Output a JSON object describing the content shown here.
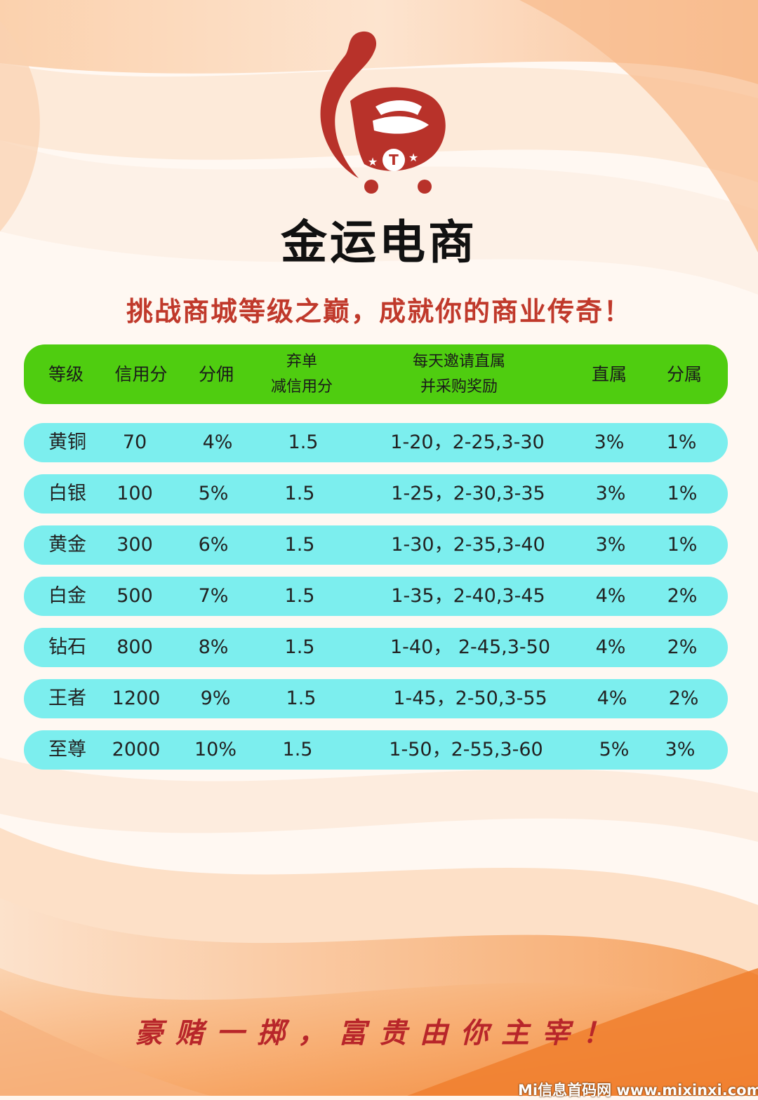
{
  "brand": {
    "name": "金运电商"
  },
  "slogan": "挑战商城等级之巅，成就你的商业传奇！",
  "table": {
    "header": {
      "level": "等级",
      "credit": "信用分",
      "commission": "分佣",
      "abandon_1": "弃单",
      "abandon_2": "减信用分",
      "invite_1": "每天邀请直属",
      "invite_2": "并采购奖励",
      "direct": "直属",
      "sub": "分属"
    },
    "rows": [
      {
        "level": "黄铜",
        "credit": "70",
        "commission": "4%",
        "abandon": "1.5",
        "invite": "1-20，2-25,3-30",
        "direct": "3%",
        "sub": "1%"
      },
      {
        "level": "白银",
        "credit": "100",
        "commission": "5%",
        "abandon": "1.5",
        "invite": "1-25，2-30,3-35",
        "direct": "3%",
        "sub": "1%"
      },
      {
        "level": "黄金",
        "credit": "300",
        "commission": "6%",
        "abandon": "1.5",
        "invite": "1-30，2-35,3-40",
        "direct": "3%",
        "sub": "1%"
      },
      {
        "level": "白金",
        "credit": "500",
        "commission": "7%",
        "abandon": "1.5",
        "invite": "1-35，2-40,3-45",
        "direct": "4%",
        "sub": "2%"
      },
      {
        "level": "钻石",
        "credit": "800",
        "commission": "8%",
        "abandon": "1.5",
        "invite": "1-40， 2-45,3-50",
        "direct": "4%",
        "sub": "2%"
      },
      {
        "level": "王者",
        "credit": "1200",
        "commission": "9%",
        "abandon": "1.5",
        "invite": "1-45，2-50,3-55",
        "direct": "4%",
        "sub": "2%"
      },
      {
        "level": "至尊",
        "credit": "2000",
        "commission": "10%",
        "abandon": "1.5",
        "invite": "1-50，2-55,3-60",
        "direct": "5%",
        "sub": "3%"
      }
    ]
  },
  "motto": "豪赌一掷，富贵由你主宰！",
  "watermark": "Mi信息首码网 www.mixinxi.com",
  "colors": {
    "header_bg": "#4fcd10",
    "row_bg": "#7ceeee",
    "accent_red": "#c0392b",
    "logo_red": "#b8322a"
  }
}
